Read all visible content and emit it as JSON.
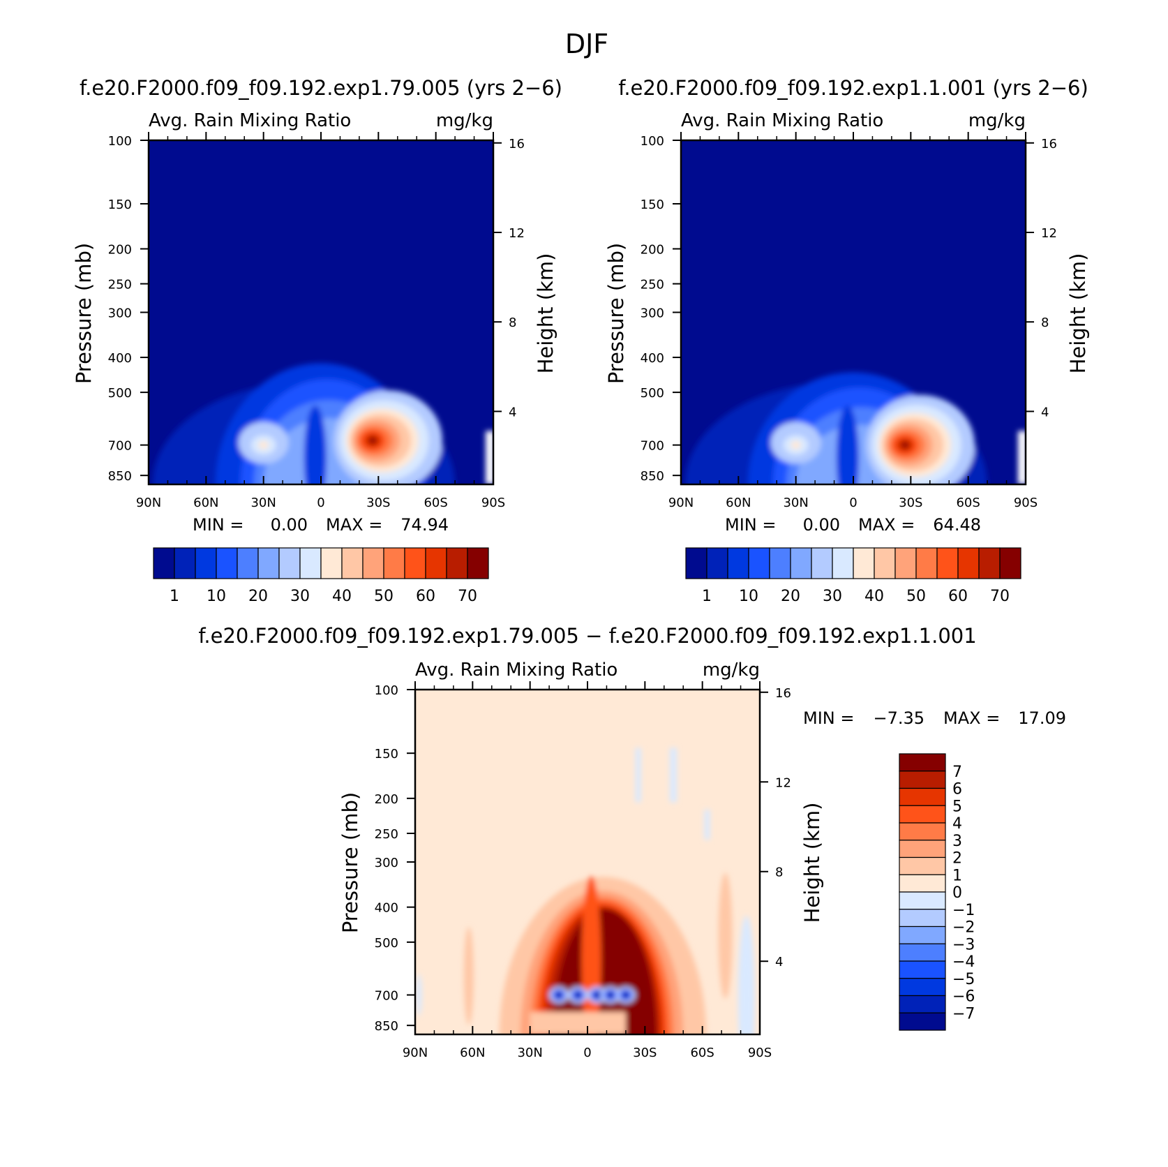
{
  "figure": {
    "season": "DJF"
  },
  "chart_data": [
    {
      "type": "heatmap",
      "title": "f.e20.F2000.f09_f09.192.exp1.79.005 (yrs 2−6)",
      "left_string": "Avg. Rain Mixing Ratio",
      "right_string": "mg/kg",
      "ylabel": "Pressure (mb)",
      "y2label": "Height (km)",
      "x_ticks": [
        "90N",
        "60N",
        "30N",
        "0",
        "30S",
        "60S",
        "90S"
      ],
      "y_ticks": [
        "100",
        "150",
        "200",
        "250",
        "300",
        "400",
        "500",
        "700",
        "850"
      ],
      "y2_ticks": [
        "16",
        "12",
        "8",
        "4"
      ],
      "xlim": [
        90,
        -90
      ],
      "ylim_mb": [
        100,
        900
      ],
      "y_scale": "log",
      "min_label": "MIN =",
      "min_value": "0.00",
      "max_label": "MAX =",
      "max_value": "74.94",
      "colorbar_labels": [
        "1",
        "10",
        "20",
        "30",
        "40",
        "50",
        "60",
        "70"
      ],
      "colorbar_colors": [
        "#000b8f",
        "#0022b8",
        "#0039e0",
        "#1a53ff",
        "#4d7fff",
        "#80a8ff",
        "#b3cbff",
        "#d9e9ff",
        "#ffe9d6",
        "#ffc7a6",
        "#ffa37a",
        "#ff7b47",
        "#ff5319",
        "#e63500",
        "#b81d00",
        "#850000"
      ],
      "features": {
        "blobs": [
          {
            "lat": 35,
            "p": 680,
            "value": 74.94
          },
          {
            "lat": -3,
            "p": 700,
            "value": 30
          }
        ]
      }
    },
    {
      "type": "heatmap",
      "title": "f.e20.F2000.f09_f09.192.exp1.1.001 (yrs 2−6)",
      "left_string": "Avg. Rain Mixing Ratio",
      "right_string": "mg/kg",
      "ylabel": "Pressure (mb)",
      "y2label": "Height (km)",
      "x_ticks": [
        "90N",
        "60N",
        "30N",
        "0",
        "30S",
        "60S",
        "90S"
      ],
      "y_ticks": [
        "100",
        "150",
        "200",
        "250",
        "300",
        "400",
        "500",
        "700",
        "850"
      ],
      "y2_ticks": [
        "16",
        "12",
        "8",
        "4"
      ],
      "xlim": [
        90,
        -90
      ],
      "ylim_mb": [
        100,
        900
      ],
      "y_scale": "log",
      "min_label": "MIN =",
      "min_value": "0.00",
      "max_label": "MAX =",
      "max_value": "64.48",
      "colorbar_labels": [
        "1",
        "10",
        "20",
        "30",
        "40",
        "50",
        "60",
        "70"
      ],
      "colorbar_colors": [
        "#000b8f",
        "#0022b8",
        "#0039e0",
        "#1a53ff",
        "#4d7fff",
        "#80a8ff",
        "#b3cbff",
        "#d9e9ff",
        "#ffe9d6",
        "#ffc7a6",
        "#ffa37a",
        "#ff7b47",
        "#ff5319",
        "#e63500",
        "#b81d00",
        "#850000"
      ],
      "features": {
        "blobs": [
          {
            "lat": 35,
            "p": 700,
            "value": 64.48
          },
          {
            "lat": -7,
            "p": 700,
            "value": 30
          }
        ]
      }
    },
    {
      "type": "heatmap",
      "title": "f.e20.F2000.f09_f09.192.exp1.79.005 − f.e20.F2000.f09_f09.192.exp1.1.001",
      "left_string": "Avg. Rain Mixing Ratio",
      "right_string": "mg/kg",
      "ylabel": "Pressure (mb)",
      "y2label": "Height (km)",
      "x_ticks": [
        "90N",
        "60N",
        "30N",
        "0",
        "30S",
        "60S",
        "90S"
      ],
      "y_ticks": [
        "100",
        "150",
        "200",
        "250",
        "300",
        "400",
        "500",
        "700",
        "850"
      ],
      "y2_ticks": [
        "16",
        "12",
        "8",
        "4"
      ],
      "xlim": [
        90,
        -90
      ],
      "ylim_mb": [
        100,
        900
      ],
      "y_scale": "log",
      "min_label": "MIN =",
      "min_value": "−7.35",
      "max_label": "MAX =",
      "max_value": "17.09",
      "colorbar_labels": [
        "7",
        "6",
        "5",
        "4",
        "3",
        "2",
        "1",
        "0",
        "−1",
        "−2",
        "−3",
        "−4",
        "−5",
        "−6",
        "−7"
      ],
      "colorbar_colors": [
        "#850000",
        "#b81d00",
        "#e63500",
        "#ff5319",
        "#ff7b47",
        "#ffa37a",
        "#ffc7a6",
        "#ffe9d6",
        "#d9e9ff",
        "#b3cbff",
        "#80a8ff",
        "#4d7fff",
        "#1a53ff",
        "#0039e0",
        "#0022b8",
        "#000b8f"
      ],
      "features": {
        "negative_lats": [
          -15,
          -5,
          5,
          12,
          20
        ]
      }
    }
  ]
}
